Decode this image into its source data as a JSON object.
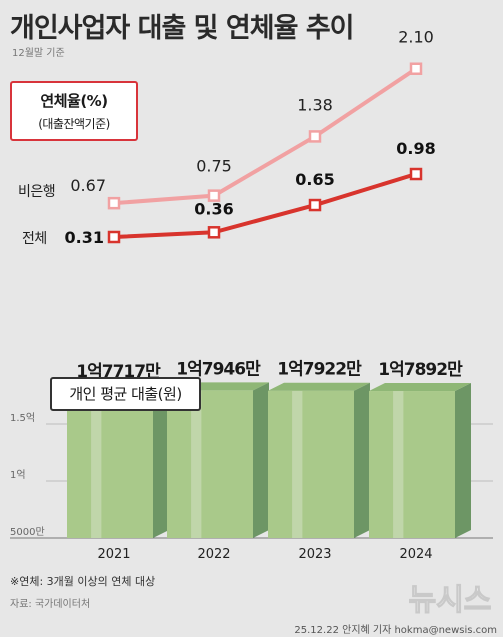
{
  "title": "개인사업자 대출 및 연체율 추이",
  "subtitle": "12월말 기준",
  "legend": {
    "line1": "연체율(%)",
    "line2": "(대출잔액기준)"
  },
  "bar_legend": "개인 평균 대출(원)",
  "footnote": "※연체: 3개월 이상의 연체 대상",
  "source": "자료: 국가데이터처",
  "credit": "25.12.22 안지혜 기자 hokma@newsis.com",
  "logo_text": "뉴시스",
  "colors": {
    "non_bank": "#f1a1a2",
    "total": "#d8342d",
    "bar_front": "#a9c98a",
    "bar_side": "#6d9665",
    "bar_top": "#8fb776"
  },
  "chart_data": [
    {
      "type": "line",
      "title": "연체율(%)",
      "x": [
        "2021",
        "2022",
        "2023",
        "2024"
      ],
      "series": [
        {
          "name": "비은행",
          "values": [
            0.67,
            0.75,
            1.38,
            2.1
          ],
          "labels": [
            "0.67",
            "0.75",
            "1.38",
            "2.10"
          ]
        },
        {
          "name": "전체",
          "values": [
            0.31,
            0.36,
            0.65,
            0.98
          ],
          "labels": [
            "0.31",
            "0.36",
            "0.65",
            "0.98"
          ]
        }
      ]
    },
    {
      "type": "bar",
      "title": "개인 평균 대출(원)",
      "categories": [
        "2021",
        "2022",
        "2023",
        "2024"
      ],
      "values": [
        177170000,
        179460000,
        179220000,
        178920000
      ],
      "value_labels": [
        "1억7717만",
        "1억7946만",
        "1억7922만",
        "1억7892만"
      ],
      "yticks": [
        {
          "value": 50000000,
          "label": "5000만"
        },
        {
          "value": 100000000,
          "label": "1억"
        },
        {
          "value": 150000000,
          "label": "1.5억"
        }
      ],
      "ylim": [
        50000000,
        190000000
      ]
    }
  ]
}
